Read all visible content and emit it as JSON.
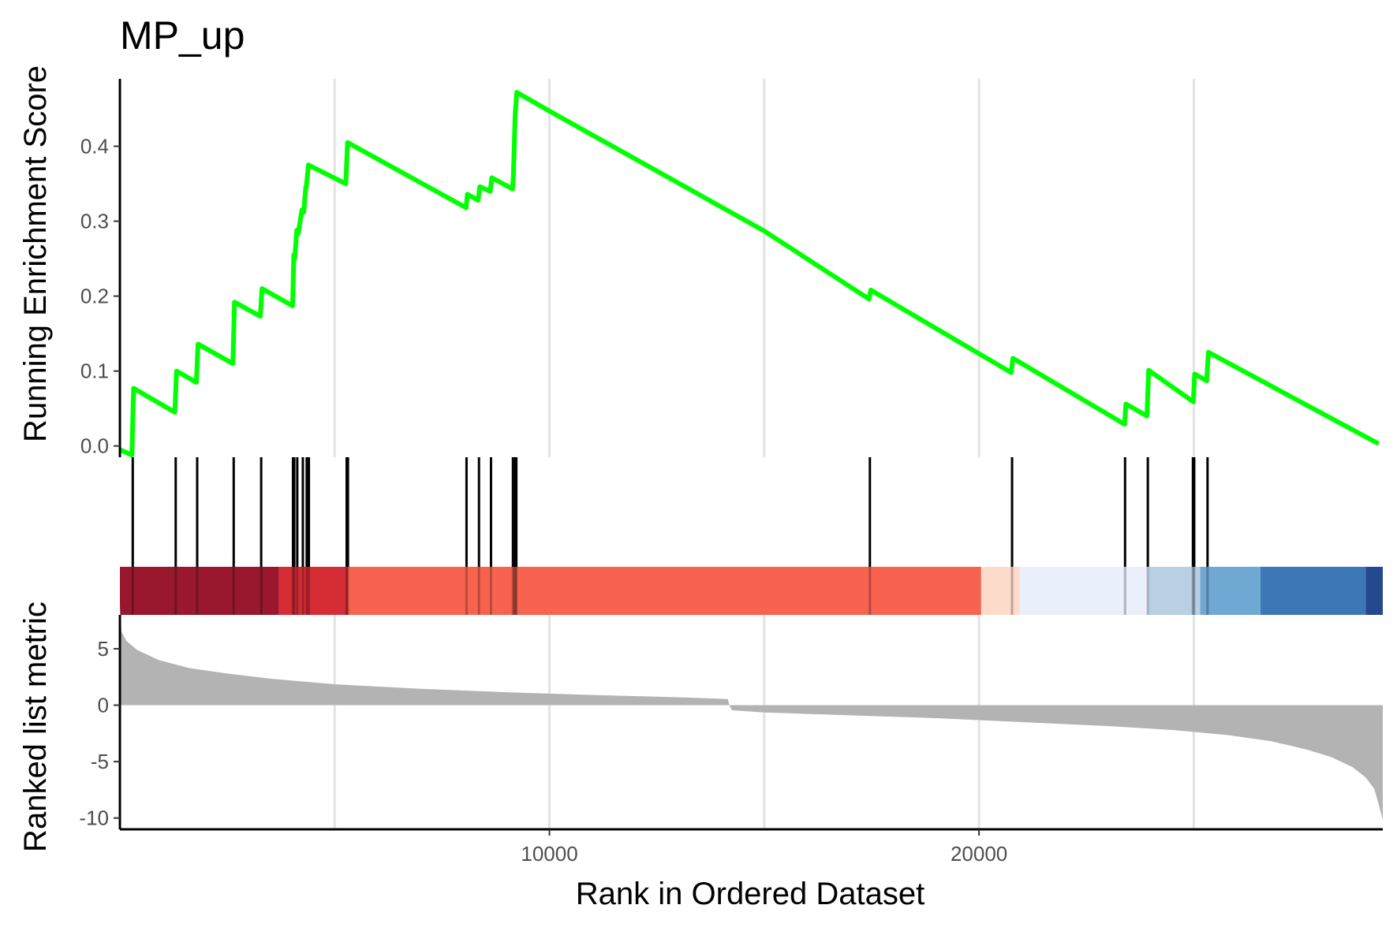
{
  "chart_data": {
    "type": "line",
    "title": "MP_up",
    "xlabel": "Rank in Ordered Dataset",
    "xlim": [
      1,
      29400
    ],
    "x_ticks": [
      10000,
      20000
    ],
    "x_tick_labels": [
      "10000",
      "20000"
    ],
    "gridlines_x": [
      5000,
      10000,
      15000,
      20000,
      25000
    ],
    "panels": [
      {
        "name": "running-enrichment-score",
        "type": "line",
        "ylabel": "Running Enrichment Score",
        "ylim": [
          -0.015,
          0.49
        ],
        "y_ticks": [
          0.0,
          0.1,
          0.2,
          0.3,
          0.4
        ],
        "y_tick_labels": [
          "0.0",
          "0.1",
          "0.2",
          "0.3",
          "0.4"
        ],
        "line_color": "#00ff00",
        "series": [
          {
            "x": [
              1,
              280,
              320,
              1280,
              1320,
              1780,
              1820,
              2630,
              2670,
              3270,
              3310,
              4020,
              4050,
              4070,
              4120,
              4150,
              4240,
              4280,
              4330,
              4340,
              4390,
              5260,
              5300,
              8060,
              8090,
              8340,
              8380,
              8620,
              8660,
              9140,
              9160,
              9200,
              9240,
              10000,
              15000,
              17440,
              17480,
              20750,
              20790,
              23390,
              23420,
              23910,
              23950,
              24990,
              25020,
              25300,
              25340,
              29300
            ],
            "y": [
              -0.005,
              -0.012,
              0.077,
              0.045,
              0.1,
              0.085,
              0.136,
              0.11,
              0.192,
              0.173,
              0.21,
              0.187,
              0.255,
              0.25,
              0.288,
              0.283,
              0.315,
              0.312,
              0.346,
              0.345,
              0.375,
              0.35,
              0.405,
              0.318,
              0.336,
              0.328,
              0.346,
              0.34,
              0.358,
              0.343,
              0.36,
              0.44,
              0.472,
              0.447,
              0.287,
              0.196,
              0.208,
              0.098,
              0.117,
              0.029,
              0.056,
              0.04,
              0.101,
              0.059,
              0.096,
              0.087,
              0.125,
              0.003
            ]
          }
        ]
      },
      {
        "name": "gene-set-hits",
        "type": "rug",
        "hit_ranks": [
          300,
          1300,
          1800,
          2650,
          3290,
          4030,
          4060,
          4130,
          4260,
          4350,
          4400,
          5280,
          5310,
          8070,
          8360,
          8640,
          9150,
          9180,
          9210,
          9230,
          17460,
          20770,
          23400,
          23930,
          24980,
          25010,
          25320
        ]
      },
      {
        "name": "rank-color-bar",
        "type": "heatmap",
        "bands": [
          {
            "x0": 1,
            "x1": 3700,
            "color": "#99182d"
          },
          {
            "x0": 3700,
            "x1": 5300,
            "color": "#d62c34"
          },
          {
            "x0": 5300,
            "x1": 20050,
            "color": "#f86350"
          },
          {
            "x0": 20050,
            "x1": 20950,
            "color": "#fddbcb"
          },
          {
            "x0": 20950,
            "x1": 23950,
            "color": "#eaeffc"
          },
          {
            "x0": 23950,
            "x1": 25150,
            "color": "#b8cfe4"
          },
          {
            "x0": 25150,
            "x1": 26550,
            "color": "#6fa9d3"
          },
          {
            "x0": 26550,
            "x1": 29000,
            "color": "#3c78b5"
          },
          {
            "x0": 29000,
            "x1": 29400,
            "color": "#24498f"
          }
        ]
      },
      {
        "name": "ranked-list-metric",
        "type": "area",
        "ylabel": "Ranked list metric",
        "ylim": [
          -11,
          8
        ],
        "y_ticks": [
          5,
          0,
          -5,
          -10
        ],
        "y_tick_labels": [
          "5",
          "0",
          "-5",
          "-10"
        ],
        "fill_color": "#b3b3b3",
        "series": [
          {
            "x": [
              1,
              40,
              150,
              400,
              900,
              1600,
              2500,
              3500,
              5000,
              7000,
              9000,
              11000,
              13000,
              14150,
              14200,
              14250,
              15000,
              17000,
              19000,
              21000,
              23000,
              24500,
              25800,
              26800,
              27600,
              28200,
              28700,
              29000,
              29200,
              29320,
              29400
            ],
            "y": [
              8.8,
              6.5,
              5.7,
              4.9,
              4.0,
              3.3,
              2.8,
              2.35,
              1.85,
              1.45,
              1.15,
              0.9,
              0.7,
              0.55,
              -0.1,
              -0.45,
              -0.65,
              -0.9,
              -1.15,
              -1.5,
              -1.85,
              -2.2,
              -2.65,
              -3.2,
              -3.9,
              -4.6,
              -5.5,
              -6.4,
              -7.4,
              -9.0,
              -10.2
            ]
          }
        ]
      }
    ]
  }
}
